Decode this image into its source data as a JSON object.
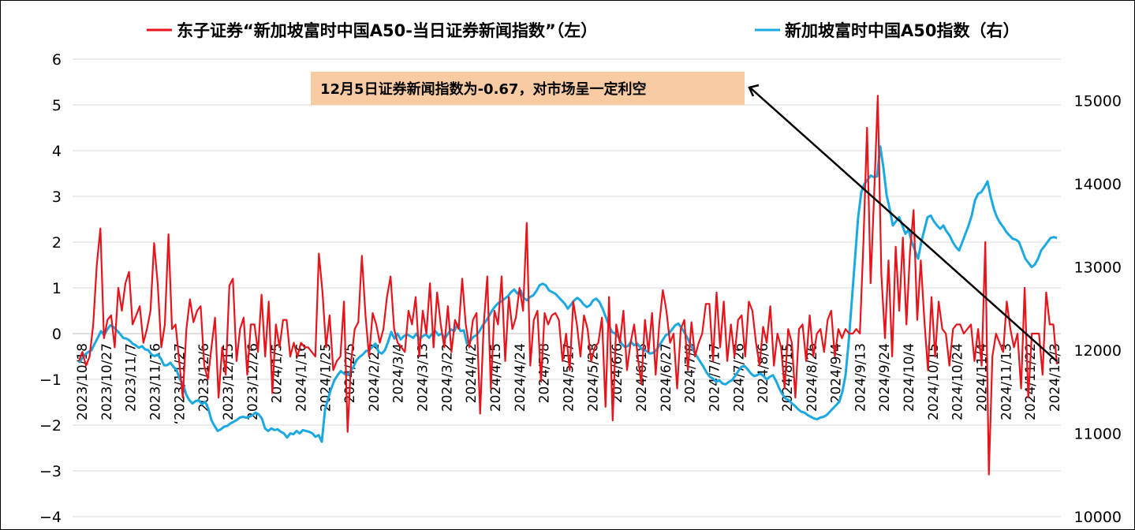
{
  "chart_data": {
    "type": "line",
    "legend": {
      "position": "top",
      "entries": [
        {
          "label": "东子证券“新加坡富时中国A50-当日证券新闻指数”（左）",
          "color": "#e8141c"
        },
        {
          "label": "新加坡富时中国A50指数（右）",
          "color": "#1ba9e1"
        }
      ]
    },
    "y_left": {
      "min": -4,
      "max": 6,
      "ticks": [
        "−4",
        "−3",
        "−2",
        "−1",
        "0",
        "1",
        "2",
        "3",
        "4",
        "5",
        "6"
      ]
    },
    "y_right": {
      "min": 10000,
      "max": 15500,
      "ticks": [
        "10000",
        "11000",
        "12000",
        "13000",
        "14000",
        "15000"
      ]
    },
    "x_range": [
      "2023/10/18",
      "2024/12/6"
    ],
    "x_ticks": [
      "2023/10/18",
      "2023/10/27",
      "2023/11/7",
      "2023/11/16",
      "‘2023/11/27",
      "2023/12/6",
      "2023/12/15",
      "2023/12/26",
      "2024/1/5",
      "2024/1/16",
      "2024/1/25",
      "2024/2/5",
      "2024/2/22",
      "2024/3/4",
      "2024/3/13",
      "2024/3/22",
      "2024/4/2",
      "2024/4/15",
      "2024/4/24",
      "2024/5/8",
      "2024/5/17",
      "2024/5/28",
      "2024/6/6",
      "2024/6/18",
      "2024/6/27",
      "2024/7/8",
      "2024/7/17",
      "2024/7/26",
      "2024/8/6",
      "2024/8/15",
      "2024/8/26",
      "2024/9/4",
      "2024/9/13",
      "2024/9/24",
      "2024/10/4",
      "2024/10/15",
      "2024/10/24",
      "2024/11/4",
      "2024/11/13",
      "2024/11/22",
      "2024/12/3"
    ],
    "annotation": {
      "text": "12月5日证券新闻指数为-0.67，对市场呈一定利空",
      "box_color": "#f8cba3",
      "target": {
        "date": "2024/12/5",
        "value": -0.67
      }
    },
    "series": [
      {
        "name": "东子证券“新加坡富时中国A50-当日证券新闻指数”（左）",
        "axis": "left",
        "color": "#e8141c",
        "values": [
          -0.6,
          -0.4,
          -0.7,
          -0.5,
          0.2,
          1.5,
          2.3,
          -0.1,
          0.3,
          0.4,
          -0.3,
          1.0,
          0.5,
          1.1,
          1.35,
          0.2,
          0.4,
          0.6,
          -0.2,
          0.1,
          0.5,
          1.98,
          1.1,
          -0.3,
          0.2,
          2.17,
          0.1,
          0.2,
          -0.6,
          -1.4,
          0.1,
          0.75,
          0.25,
          0.5,
          0.6,
          -0.7,
          -1.0,
          -0.3,
          0.35,
          -1.4,
          -0.3,
          -0.9,
          1.05,
          1.2,
          -0.6,
          0.1,
          0.35,
          -0.9,
          0.2,
          0.2,
          -0.4,
          0.85,
          -0.5,
          0.7,
          -1.3,
          0.2,
          -0.3,
          0.3,
          0.3,
          -0.5,
          -0.2,
          -0.5,
          -0.2,
          -0.3,
          -0.3,
          -0.4,
          -0.5,
          1.75,
          0.9,
          -0.3,
          0.4,
          -0.8,
          -0.6,
          -0.5,
          0.7,
          -2.15,
          -0.6,
          0.1,
          0.25,
          1.7,
          0.4,
          -0.5,
          0.45,
          0.2,
          -0.2,
          0.1,
          0.8,
          1.25,
          0.1,
          -0.2,
          -0.3,
          -0.4,
          0.5,
          0.2,
          0.8,
          -0.5,
          0.5,
          0.0,
          1.1,
          -0.3,
          0.9,
          0.2,
          -0.3,
          0.6,
          -0.4,
          0.3,
          0.1,
          1.2,
          0.2,
          -0.3,
          0.3,
          0.45,
          -1.75,
          0.2,
          1.25,
          -1.2,
          0.5,
          0.2,
          1.25,
          -0.6,
          0.8,
          0.1,
          0.35,
          1.0,
          0.5,
          2.42,
          -0.7,
          0.3,
          0.5,
          -1.05,
          0.45,
          0.2,
          0.4,
          0.45,
          0.3,
          -0.6,
          0.0,
          -0.8,
          0.7,
          0.2,
          -0.5,
          0.4,
          0.1,
          -0.6,
          -0.3,
          -0.2,
          0.35,
          -1.6,
          0.8,
          -1.9,
          0.2,
          -0.2,
          0.5,
          -0.8,
          -0.2,
          0.2,
          -0.5,
          -1.1,
          0.3,
          -0.4,
          0.45,
          -0.9,
          0.2,
          0.95,
          0.5,
          -0.2,
          0.0,
          -1.2,
          0.1,
          0.3,
          -0.8,
          0.25,
          -0.5,
          -0.2,
          0.0,
          0.65,
          0.65,
          -0.6,
          0.9,
          -0.3,
          0.7,
          -0.6,
          0.2,
          -0.5,
          0.3,
          0.4,
          -0.5,
          0.7,
          0.5,
          -0.2,
          -0.7,
          0.15,
          -0.2,
          0.6,
          -0.7,
          0.0,
          -0.3,
          -1.2,
          0.1,
          -0.2,
          -1.4,
          0.1,
          0.2,
          -0.6,
          0.4,
          -0.5,
          0.0,
          0.1,
          -0.4,
          0.3,
          0.5,
          -0.5,
          0.1,
          -0.1,
          0.1,
          0.0,
          0.0,
          0.1,
          0.0,
          2.0,
          4.5,
          1.1,
          3.1,
          5.2,
          1.3,
          -0.1,
          1.6,
          -0.5,
          1.9,
          0.5,
          2.1,
          0.2,
          1.8,
          2.7,
          0.3,
          1.6,
          0.3,
          -0.8,
          0.8,
          -0.5,
          0.7,
          0.1,
          0.0,
          -0.7,
          0.1,
          0.2,
          0.2,
          0.0,
          0.1,
          0.2,
          -0.6,
          0.1,
          -0.7,
          2.0,
          -3.08,
          -0.5,
          0.0,
          -0.2,
          -0.4,
          0.7,
          0.1,
          -0.3,
          0.0,
          -1.2,
          1.0,
          -1.4,
          0.0,
          0.0,
          0.0,
          -0.9,
          0.9,
          0.2,
          0.2,
          -0.67
        ]
      },
      {
        "name": "新加坡富时中国A50指数（右）",
        "axis": "right",
        "color": "#1ba9e1",
        "values": [
          11850,
          11900,
          11950,
          11980,
          12000,
          12080,
          12150,
          12230,
          12180,
          12250,
          12300,
          12280,
          12240,
          12200,
          12150,
          12140,
          12120,
          12080,
          12060,
          12030,
          12050,
          12010,
          12000,
          11950,
          11930,
          11950,
          11900,
          11820,
          11820,
          11850,
          11800,
          11760,
          11650,
          11600,
          11470,
          11400,
          11360,
          11390,
          11400,
          11350,
          11380,
          11300,
          11160,
          11090,
          11030,
          11050,
          11080,
          11090,
          11120,
          11140,
          11160,
          11190,
          11200,
          11190,
          11200,
          11220,
          11250,
          11230,
          11180,
          11060,
          11030,
          11060,
          11040,
          11050,
          11020,
          11000,
          10950,
          11000,
          10990,
          11030,
          11000,
          11040,
          11030,
          11020,
          11000,
          10960,
          10980,
          10900,
          11280,
          11420,
          11540,
          11640,
          11700,
          11750,
          11720,
          11700,
          11740,
          11800,
          11880,
          11920,
          11950,
          11990,
          12000,
          12040,
          12080,
          11980,
          11960,
          12000,
          12100,
          12220,
          12140,
          12200,
          12130,
          12170,
          12190,
          12170,
          12150,
          12200,
          12130,
          12170,
          12190,
          12150,
          12200,
          12230,
          12180,
          12200,
          12140,
          12200,
          12250,
          12230,
          12310,
          12230,
          12240,
          12080,
          12110,
          12160,
          12180,
          12230,
          12300,
          12350,
          12410,
          12480,
          12530,
          12570,
          12590,
          12620,
          12650,
          12700,
          12730,
          12680,
          12720,
          12630,
          12600,
          12640,
          12660,
          12710,
          12780,
          12800,
          12780,
          12720,
          12700,
          12680,
          12640,
          12600,
          12560,
          12500,
          12550,
          12600,
          12630,
          12600,
          12550,
          12520,
          12540,
          12600,
          12620,
          12580,
          12500,
          12400,
          12300,
          12220,
          12200,
          12160,
          12080,
          12040,
          12050,
          12100,
          12060,
          12080,
          12030,
          12000,
          11990,
          11960,
          11970,
          12000,
          12060,
          12120,
          12180,
          12200,
          12250,
          12300,
          12320,
          12270,
          12210,
          12140,
          12060,
          11980,
          11920,
          11860,
          11800,
          11730,
          11680,
          11660,
          11620,
          11640,
          11600,
          11590,
          11620,
          11640,
          11690,
          11750,
          11800,
          11810,
          11770,
          11720,
          11690,
          11700,
          11720,
          11690,
          11650,
          11680,
          11700,
          11630,
          11540,
          11470,
          11420,
          11400,
          11360,
          11330,
          11290,
          11260,
          11250,
          11220,
          11200,
          11180,
          11170,
          11190,
          11200,
          11220,
          11260,
          11300,
          11340,
          11380,
          11500,
          11700,
          12100,
          12600,
          13100,
          13600,
          13900,
          14000,
          14050,
          14100,
          14080,
          14090,
          14450,
          14200,
          13870,
          13700,
          13500,
          13550,
          13600,
          13500,
          13400,
          13450,
          13300,
          13200,
          13100,
          13300,
          13450,
          13600,
          13620,
          13550,
          13500,
          13460,
          13500,
          13430,
          13380,
          13300,
          13240,
          13200,
          13300,
          13400,
          13500,
          13620,
          13800,
          13880,
          13900,
          13960,
          14030,
          13850,
          13700,
          13600,
          13530,
          13480,
          13420,
          13380,
          13340,
          13330,
          13300,
          13200,
          13100,
          13050,
          13000,
          13030,
          13100,
          13200,
          13250,
          13300,
          13350,
          13360,
          13350
        ]
      }
    ]
  }
}
